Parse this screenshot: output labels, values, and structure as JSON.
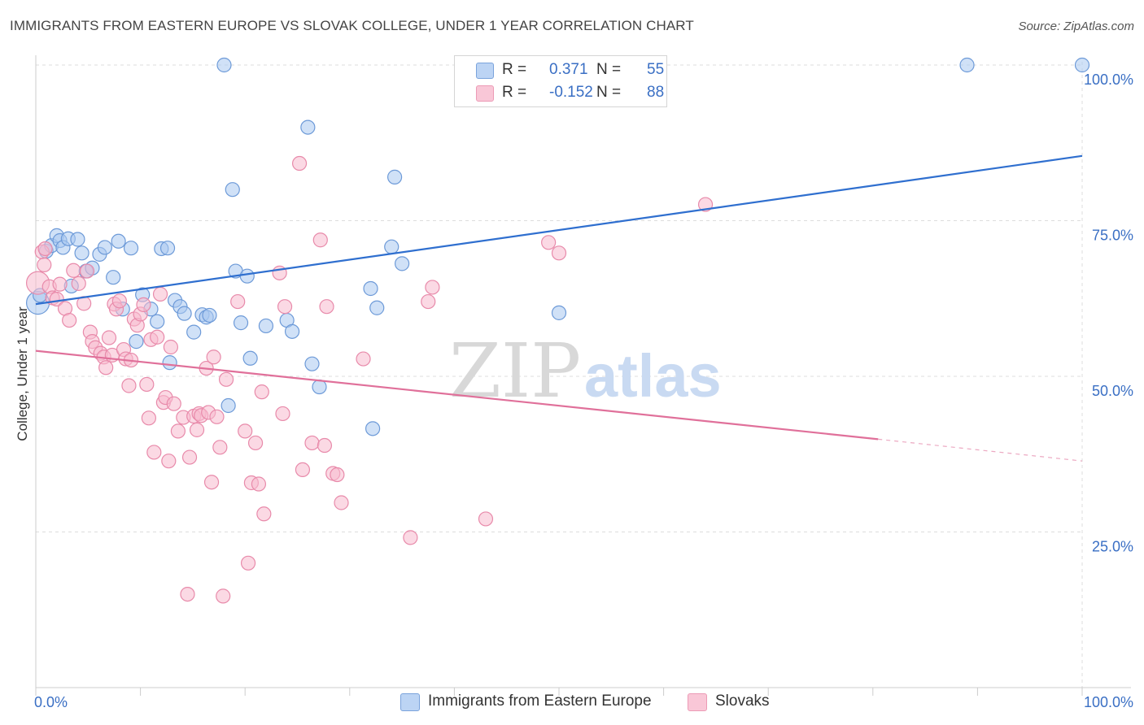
{
  "title": "IMMIGRANTS FROM EASTERN EUROPE VS SLOVAK COLLEGE, UNDER 1 YEAR CORRELATION CHART",
  "source": "Source: ZipAtlas.com",
  "watermark": {
    "zip": "ZIP",
    "atlas": "atlas"
  },
  "legend": {
    "r_label": "R =",
    "n_label": "N =",
    "rows": [
      {
        "r": "0.371",
        "n": "55"
      },
      {
        "r": "-0.152",
        "n": "88"
      }
    ]
  },
  "colors": {
    "blue_fill": "#a9c8f0",
    "blue_stroke": "#6d9ad8",
    "blue_line": "#2f6fcf",
    "pink_fill": "#f7b9ce",
    "pink_stroke": "#e88aaa",
    "pink_line": "#e0709a",
    "tick_text": "#3a6fc4",
    "grid": "#dddddd"
  },
  "chart_data": {
    "type": "scatter",
    "xlabel": "",
    "ylabel": "College, Under 1 year",
    "xlim": [
      0,
      100
    ],
    "ylim": [
      0,
      100
    ],
    "x_ticks": [
      {
        "value": 0,
        "label": "0.0%"
      },
      {
        "value": 100,
        "label": "100.0%"
      }
    ],
    "y_ticks": [
      {
        "value": 25,
        "label": "25.0%"
      },
      {
        "value": 50,
        "label": "50.0%"
      },
      {
        "value": 75,
        "label": "75.0%"
      },
      {
        "value": 100,
        "label": "100.0%"
      }
    ],
    "grid": true,
    "legend_position": "bottom",
    "series": [
      {
        "name": "Immigrants from Eastern Europe",
        "color": "blue",
        "trend": {
          "x0": 0,
          "y0": 61.6,
          "x1": 100,
          "y1": 85.4
        },
        "points": [
          [
            0.2,
            61.8
          ],
          [
            1.0,
            70.1
          ],
          [
            1.5,
            71.0
          ],
          [
            2.0,
            72.6
          ],
          [
            2.3,
            71.8
          ],
          [
            2.6,
            70.7
          ],
          [
            3.1,
            72.1
          ],
          [
            3.4,
            64.5
          ],
          [
            4.0,
            72.0
          ],
          [
            4.4,
            69.8
          ],
          [
            4.8,
            66.9
          ],
          [
            5.4,
            67.4
          ],
          [
            6.1,
            69.6
          ],
          [
            6.6,
            70.7
          ],
          [
            7.4,
            65.9
          ],
          [
            7.9,
            71.7
          ],
          [
            8.3,
            60.8
          ],
          [
            9.1,
            70.6
          ],
          [
            9.6,
            55.6
          ],
          [
            10.2,
            63.1
          ],
          [
            11.0,
            60.8
          ],
          [
            11.6,
            58.8
          ],
          [
            12.0,
            70.5
          ],
          [
            12.6,
            70.6
          ],
          [
            12.8,
            52.2
          ],
          [
            13.3,
            62.2
          ],
          [
            13.8,
            61.2
          ],
          [
            14.2,
            60.1
          ],
          [
            15.1,
            57.1
          ],
          [
            15.9,
            59.9
          ],
          [
            16.3,
            59.5
          ],
          [
            16.6,
            59.8
          ],
          [
            18.0,
            100.0
          ],
          [
            18.4,
            45.3
          ],
          [
            18.8,
            80.0
          ],
          [
            19.1,
            66.9
          ],
          [
            19.6,
            58.6
          ],
          [
            20.2,
            66.1
          ],
          [
            20.5,
            52.9
          ],
          [
            22.0,
            58.1
          ],
          [
            24.0,
            59.0
          ],
          [
            24.5,
            57.2
          ],
          [
            26.0,
            90.0
          ],
          [
            26.4,
            52.0
          ],
          [
            27.1,
            48.3
          ],
          [
            32.0,
            64.1
          ],
          [
            32.2,
            41.6
          ],
          [
            32.6,
            61.0
          ],
          [
            34.0,
            70.8
          ],
          [
            34.3,
            82.0
          ],
          [
            35.0,
            68.1
          ],
          [
            50.0,
            60.2
          ],
          [
            89.0,
            100.0
          ],
          [
            100.0,
            100.0
          ],
          [
            0.4,
            63.0
          ]
        ]
      },
      {
        "name": "Slovaks",
        "color": "pink",
        "trend": {
          "x0": 0,
          "y0": 54.1,
          "x1": 80.5,
          "y1": 39.9,
          "dash_to_x": 100,
          "dash_to_y": 36.4
        },
        "points": [
          [
            0.2,
            65.0
          ],
          [
            0.6,
            70.0
          ],
          [
            0.8,
            67.9
          ],
          [
            1.3,
            64.4
          ],
          [
            1.6,
            62.6
          ],
          [
            2.0,
            62.4
          ],
          [
            2.3,
            64.8
          ],
          [
            2.8,
            60.9
          ],
          [
            3.2,
            59.0
          ],
          [
            3.6,
            67.0
          ],
          [
            4.1,
            64.9
          ],
          [
            4.6,
            61.7
          ],
          [
            4.9,
            66.9
          ],
          [
            5.2,
            57.1
          ],
          [
            5.4,
            55.6
          ],
          [
            5.7,
            54.6
          ],
          [
            6.2,
            53.7
          ],
          [
            6.5,
            53.1
          ],
          [
            6.7,
            51.4
          ],
          [
            7.0,
            56.2
          ],
          [
            7.3,
            53.4
          ],
          [
            7.5,
            61.6
          ],
          [
            7.7,
            60.8
          ],
          [
            8.0,
            62.1
          ],
          [
            8.4,
            54.3
          ],
          [
            8.6,
            52.8
          ],
          [
            8.9,
            48.5
          ],
          [
            9.1,
            52.6
          ],
          [
            9.4,
            59.2
          ],
          [
            9.7,
            58.2
          ],
          [
            10.0,
            60.0
          ],
          [
            10.3,
            61.5
          ],
          [
            10.6,
            48.7
          ],
          [
            10.8,
            43.3
          ],
          [
            11.0,
            55.9
          ],
          [
            11.3,
            37.8
          ],
          [
            11.6,
            56.3
          ],
          [
            11.9,
            63.2
          ],
          [
            12.2,
            45.8
          ],
          [
            12.4,
            46.6
          ],
          [
            12.7,
            36.4
          ],
          [
            12.9,
            54.7
          ],
          [
            13.2,
            45.6
          ],
          [
            13.6,
            41.2
          ],
          [
            14.1,
            43.4
          ],
          [
            14.5,
            15.0
          ],
          [
            14.7,
            37.0
          ],
          [
            15.1,
            43.6
          ],
          [
            15.4,
            41.4
          ],
          [
            15.6,
            44.0
          ],
          [
            15.8,
            43.7
          ],
          [
            16.3,
            51.3
          ],
          [
            16.5,
            44.2
          ],
          [
            16.8,
            33.0
          ],
          [
            17.0,
            53.1
          ],
          [
            17.3,
            43.5
          ],
          [
            17.6,
            38.6
          ],
          [
            17.9,
            14.7
          ],
          [
            18.2,
            49.5
          ],
          [
            19.3,
            62.0
          ],
          [
            20.0,
            41.2
          ],
          [
            20.3,
            20.0
          ],
          [
            20.6,
            32.9
          ],
          [
            21.0,
            39.3
          ],
          [
            21.3,
            32.7
          ],
          [
            21.6,
            47.5
          ],
          [
            21.8,
            27.9
          ],
          [
            23.3,
            66.6
          ],
          [
            23.6,
            44.0
          ],
          [
            23.8,
            61.2
          ],
          [
            25.2,
            84.2
          ],
          [
            25.5,
            35.0
          ],
          [
            26.4,
            39.3
          ],
          [
            27.2,
            71.9
          ],
          [
            27.6,
            38.9
          ],
          [
            27.8,
            61.2
          ],
          [
            28.4,
            34.4
          ],
          [
            28.8,
            34.2
          ],
          [
            29.2,
            29.7
          ],
          [
            31.3,
            52.8
          ],
          [
            35.8,
            24.1
          ],
          [
            37.5,
            62.0
          ],
          [
            37.9,
            64.3
          ],
          [
            43.0,
            27.1
          ],
          [
            49.0,
            71.5
          ],
          [
            50.0,
            69.8
          ],
          [
            64.0,
            77.6
          ],
          [
            0.9,
            70.5
          ]
        ]
      }
    ]
  }
}
